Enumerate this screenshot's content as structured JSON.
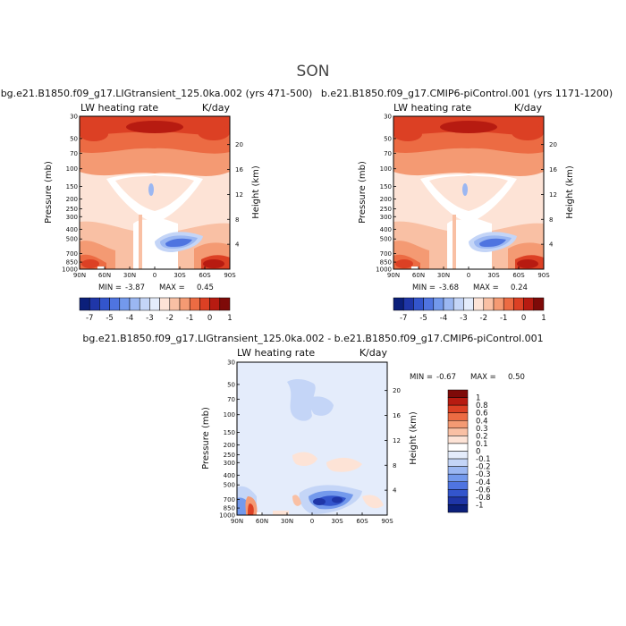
{
  "figure": {
    "title": "SON",
    "background": "#ffffff"
  },
  "chart_data": [
    {
      "type": "heatmap",
      "title": "bg.e21.B1850.f09_g17.LIGtransient_125.0ka.002 (yrs 471-500)",
      "variable": "LW heating rate",
      "units": "K/day",
      "xlabel": "",
      "ylabel": "Pressure (mb)",
      "y2label": "Height (km)",
      "x_ticks": [
        "90N",
        "60N",
        "30N",
        "0",
        "30S",
        "60S",
        "90S"
      ],
      "y_ticks": [
        "30",
        "50",
        "70",
        "100",
        "150",
        "200",
        "250",
        "300",
        "400",
        "500",
        "700",
        "850",
        "1000"
      ],
      "y2_ticks": [
        "20",
        "16",
        "12",
        "8",
        "4"
      ],
      "ylim": [
        30,
        1000
      ],
      "y_scale": "log-pressure",
      "min_label": "MIN =",
      "min": "-3.87",
      "max_label": "MAX =",
      "max": "0.45",
      "colorbar_labels": [
        "-7",
        "-5",
        "-4",
        "-3",
        "-2",
        "-1",
        "0",
        "1"
      ],
      "colorbar_colors": [
        "#0b1f7a",
        "#1f36a8",
        "#3355cc",
        "#4f74e0",
        "#7399ec",
        "#9bb7f2",
        "#c4d5f7",
        "#e4ecfb",
        "#fde3d6",
        "#f9c0a4",
        "#f49a73",
        "#ec6b43",
        "#dc4024",
        "#b71b11",
        "#7e0a08"
      ],
      "colorbar_orientation": "horizontal"
    },
    {
      "type": "heatmap",
      "title": "b.e21.B1850.f09_g17.CMIP6-piControl.001 (yrs 1171-1200)",
      "variable": "LW heating rate",
      "units": "K/day",
      "xlabel": "",
      "ylabel": "Pressure (mb)",
      "y2label": "Height (km)",
      "x_ticks": [
        "90N",
        "60N",
        "30N",
        "0",
        "30S",
        "60S",
        "90S"
      ],
      "y_ticks": [
        "30",
        "50",
        "70",
        "100",
        "150",
        "200",
        "250",
        "300",
        "400",
        "500",
        "700",
        "850",
        "1000"
      ],
      "y2_ticks": [
        "20",
        "16",
        "12",
        "8",
        "4"
      ],
      "ylim": [
        30,
        1000
      ],
      "y_scale": "log-pressure",
      "min_label": "MIN =",
      "min": "-3.68",
      "max_label": "MAX =",
      "max": "0.24",
      "colorbar_labels": [
        "-7",
        "-5",
        "-4",
        "-3",
        "-2",
        "-1",
        "0",
        "1"
      ],
      "colorbar_colors": [
        "#0b1f7a",
        "#1f36a8",
        "#3355cc",
        "#4f74e0",
        "#7399ec",
        "#9bb7f2",
        "#c4d5f7",
        "#e4ecfb",
        "#fde3d6",
        "#f9c0a4",
        "#f49a73",
        "#ec6b43",
        "#dc4024",
        "#b71b11",
        "#7e0a08"
      ],
      "colorbar_orientation": "horizontal"
    },
    {
      "type": "heatmap",
      "title": "bg.e21.B1850.f09_g17.LIGtransient_125.0ka.002 - b.e21.B1850.f09_g17.CMIP6-piControl.001",
      "variable": "LW heating rate",
      "units": "K/day",
      "xlabel": "",
      "ylabel": "Pressure (mb)",
      "y2label": "Height (km)",
      "x_ticks": [
        "90N",
        "60N",
        "30N",
        "0",
        "30S",
        "60S",
        "90S"
      ],
      "y_ticks": [
        "30",
        "50",
        "70",
        "100",
        "150",
        "200",
        "250",
        "300",
        "400",
        "500",
        "700",
        "850",
        "1000"
      ],
      "y2_ticks": [
        "20",
        "16",
        "12",
        "8",
        "4"
      ],
      "ylim": [
        30,
        1000
      ],
      "y_scale": "log-pressure",
      "min_label": "MIN =",
      "min": "-0.67",
      "max_label": "MAX =",
      "max": "0.50",
      "colorbar_labels": [
        "1",
        "0.8",
        "0.6",
        "0.4",
        "0.3",
        "0.2",
        "0.1",
        "0",
        "-0.1",
        "-0.2",
        "-0.3",
        "-0.4",
        "-0.6",
        "-0.8",
        "-1"
      ],
      "colorbar_colors": [
        "#7e0a08",
        "#b71b11",
        "#dc4024",
        "#ec6b43",
        "#f49a73",
        "#f9c0a4",
        "#fde3d6",
        "#ffffff",
        "#e4ecfb",
        "#c4d5f7",
        "#9bb7f2",
        "#7399ec",
        "#4f74e0",
        "#3355cc",
        "#1f36a8",
        "#0b1f7a"
      ],
      "colorbar_orientation": "vertical"
    }
  ]
}
